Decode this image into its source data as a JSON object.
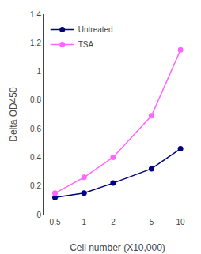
{
  "chart_data": {
    "type": "line",
    "x": [
      0.5,
      1,
      2,
      5,
      10
    ],
    "series": [
      {
        "name": "Untreated",
        "color": "#000080",
        "marker": "circle",
        "values": [
          0.12,
          0.15,
          0.22,
          0.32,
          0.46
        ]
      },
      {
        "name": "TSA",
        "color": "#FF66FF",
        "marker": "circle",
        "values": [
          0.15,
          0.26,
          0.4,
          0.69,
          1.15
        ]
      }
    ],
    "xlabel": "Cell number (X10,000)",
    "ylabel": "Delta OD450",
    "log": "x",
    "xlim": [
      0.38,
      13
    ],
    "xticks": [
      0.5,
      1,
      2,
      5,
      10
    ],
    "ylim": [
      0,
      1.4
    ],
    "yticks": [
      0,
      0.2,
      0.4,
      0.6,
      0.8,
      1,
      1.2,
      1.4
    ],
    "grid": false,
    "legend": "upper left"
  }
}
